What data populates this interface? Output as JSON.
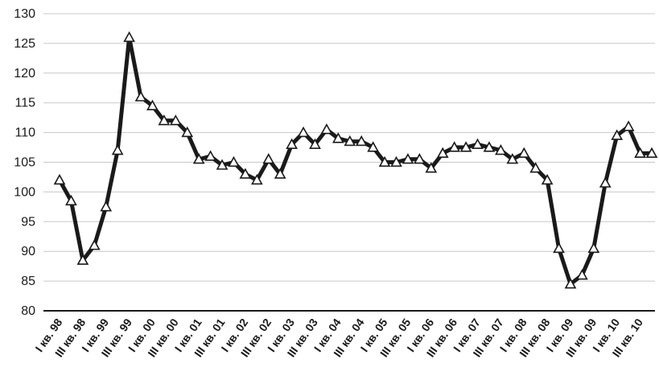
{
  "chart_data": {
    "type": "line",
    "title": "",
    "xlabel": "",
    "ylabel": "",
    "ylim": [
      80,
      130
    ],
    "yticks": [
      80,
      85,
      90,
      95,
      100,
      105,
      110,
      115,
      120,
      125,
      130
    ],
    "grid": "horizontal",
    "legend": "none",
    "colors": {
      "line": "#1a1a1a",
      "grid": "#c8c8c8",
      "axis": "#1a1a1a",
      "marker_fill": "#ffffff"
    },
    "categories": [
      "I кв. 98",
      "",
      "III кв. 98",
      "",
      "I кв. 99",
      "",
      "III кв. 99",
      "",
      "I кв. 00",
      "",
      "III кв. 00",
      "",
      "I кв. 01",
      "",
      "III кв. 01",
      "",
      "I кв. 02",
      "",
      "III кв. 02",
      "",
      "I кв. 03",
      "",
      "III кв. 03",
      "",
      "I кв. 04",
      "",
      "III кв. 04",
      "",
      "I кв. 05",
      "",
      "III кв. 05",
      "",
      "I кв. 06",
      "",
      "III кв. 06",
      "",
      "I кв. 07",
      "",
      "III кв. 07",
      "",
      "I кв. 08",
      "",
      "III кв. 08",
      "",
      "I кв. 09",
      "",
      "III кв. 09",
      "",
      "I кв. 10",
      "",
      "III кв. 10",
      ""
    ],
    "series": [
      {
        "values": [
          102,
          98.5,
          88.5,
          91,
          97.5,
          107,
          126,
          116,
          114.5,
          112,
          112,
          110,
          105.5,
          106,
          104.5,
          105,
          103,
          102,
          105.5,
          103,
          108,
          110,
          108,
          110.5,
          109,
          108.5,
          108.5,
          107.5,
          105,
          105,
          105.5,
          105.5,
          104,
          106.5,
          107.5,
          107.5,
          108,
          107.5,
          107,
          105.5,
          106.5,
          104,
          102,
          90.5,
          84.5,
          86,
          90.5,
          101.5,
          109.5,
          111,
          106.5,
          106.5
        ]
      }
    ]
  }
}
